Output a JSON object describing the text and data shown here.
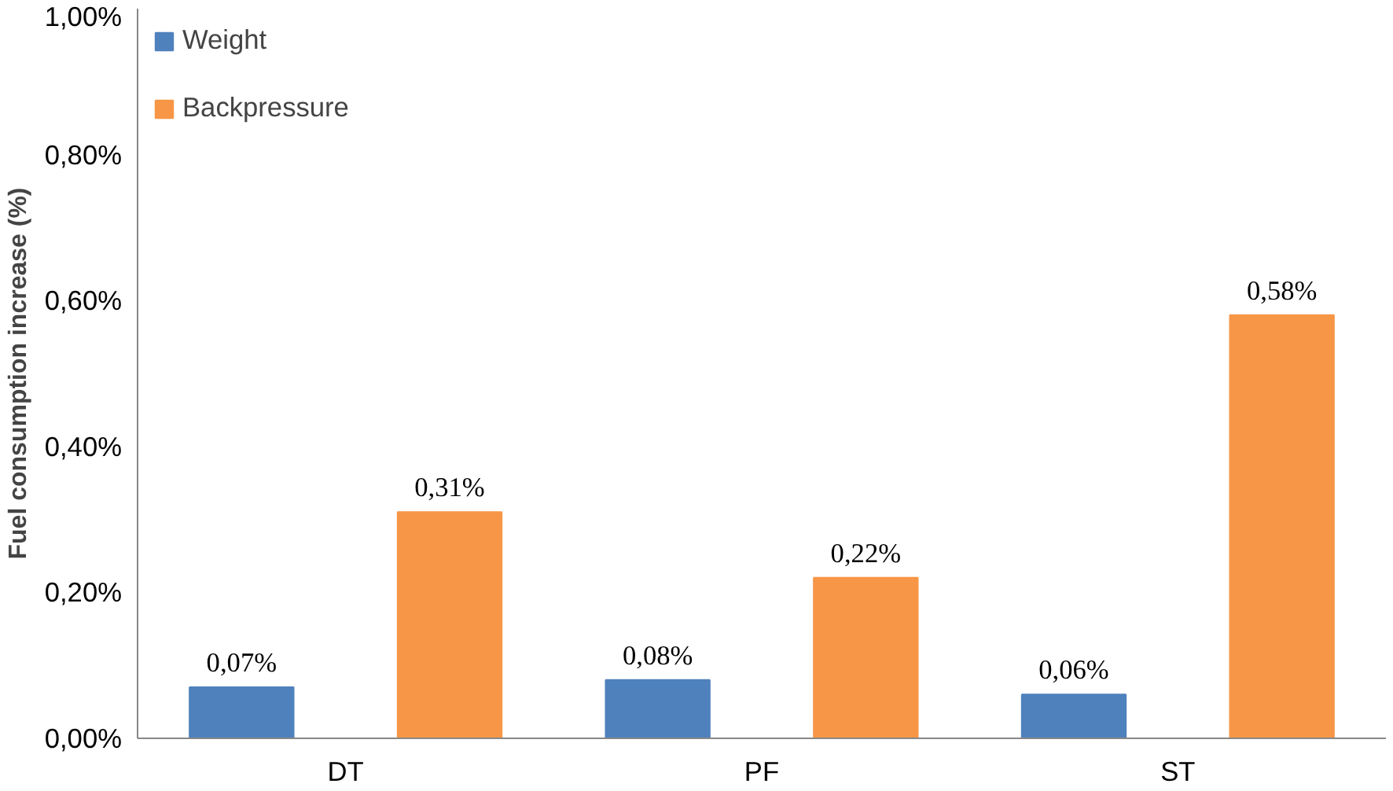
{
  "chart_data": {
    "type": "bar",
    "ylabel": "Fuel consumption increase (%)",
    "categories": [
      "DT",
      "PF",
      "ST"
    ],
    "series": [
      {
        "name": "Weight",
        "color": "#4f81bd",
        "values": [
          0.07,
          0.08,
          0.06
        ],
        "value_labels": [
          "0,07%",
          "0,08%",
          "0,06%"
        ]
      },
      {
        "name": "Backpressure",
        "color": "#f79646",
        "values": [
          0.31,
          0.22,
          0.58
        ],
        "value_labels": [
          "0,31%",
          "0,22%",
          "0,58%"
        ]
      }
    ],
    "ylim": [
      0,
      1
    ],
    "yticks": [
      {
        "value": 0,
        "label": "0,00%"
      },
      {
        "value": 0.2,
        "label": "0,20%"
      },
      {
        "value": 0.4,
        "label": "0,40%"
      },
      {
        "value": 0.6,
        "label": "0,60%"
      },
      {
        "value": 0.8,
        "label": "0,80%"
      },
      {
        "value": 1,
        "label": "1,00%"
      }
    ],
    "legend": "top left",
    "grid": false
  }
}
